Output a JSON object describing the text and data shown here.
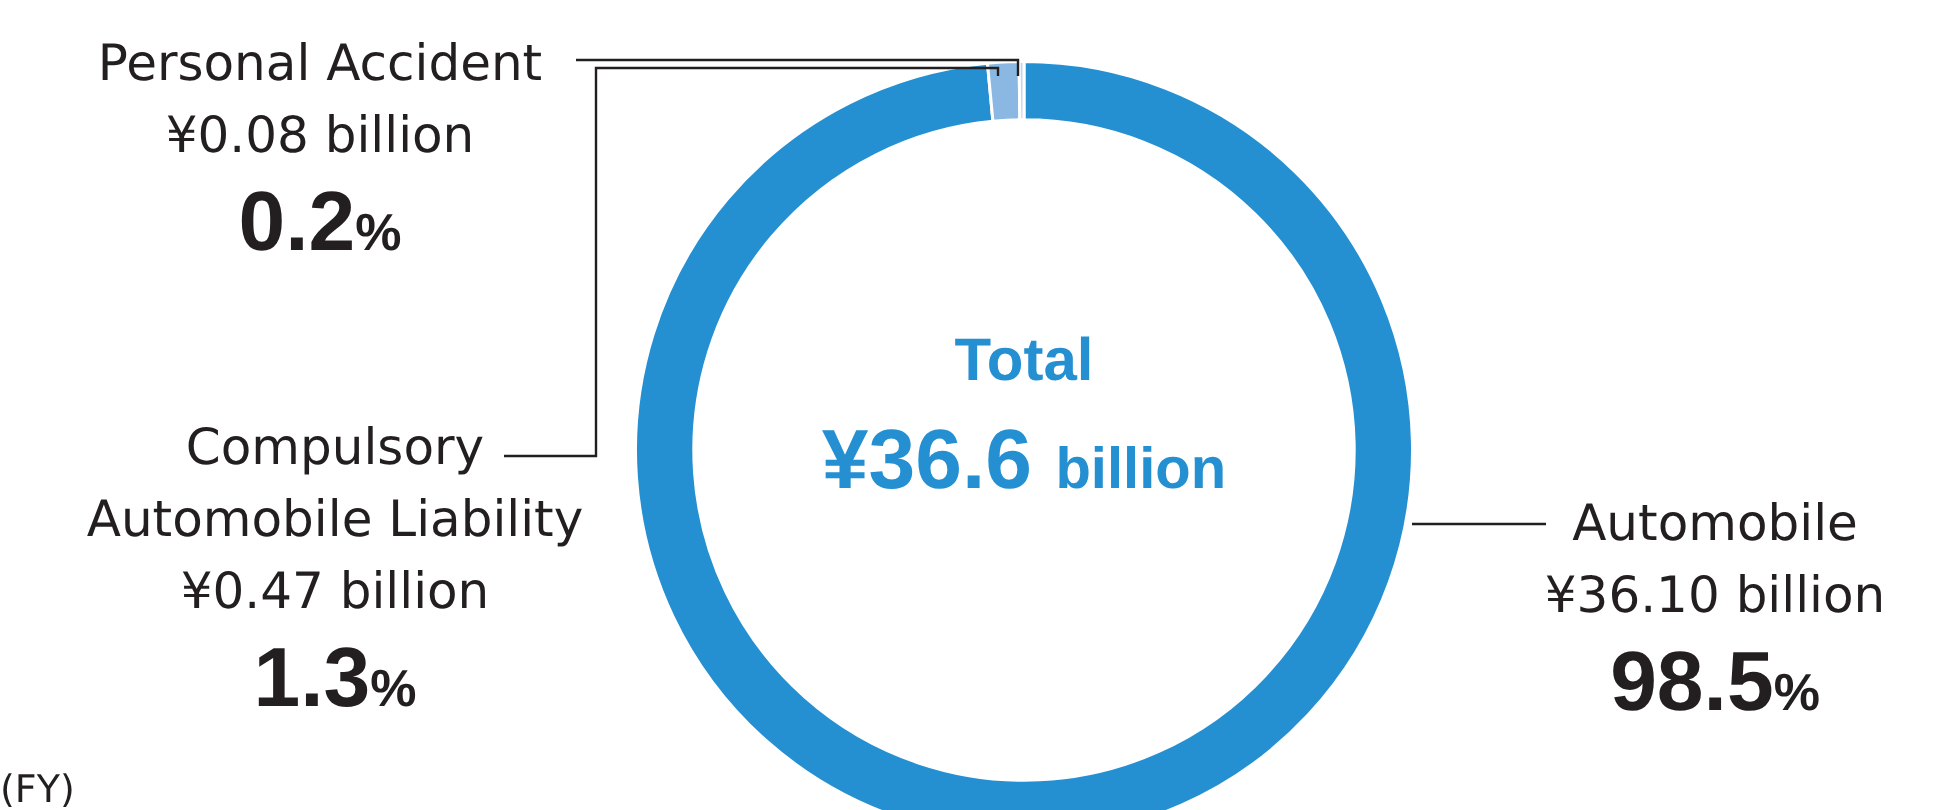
{
  "chart_data": {
    "type": "donut",
    "title": "Total",
    "subtitle": "¥36.6 billion",
    "categories": [
      "Automobile",
      "Compulsory Automobile Liability",
      "Personal Accident"
    ],
    "values": [
      98.5,
      1.3,
      0.2
    ],
    "value_labels": [
      "98.5%",
      "1.3%",
      "0.2%"
    ],
    "colors": [
      "#2490d2",
      "#8ab8e2",
      "#c5d6ea"
    ],
    "annotations": [
      "¥36.10 billion",
      "¥0.47 billion",
      "¥0.08 billion",
      "(FY)"
    ],
    "legend": false
  }
}
